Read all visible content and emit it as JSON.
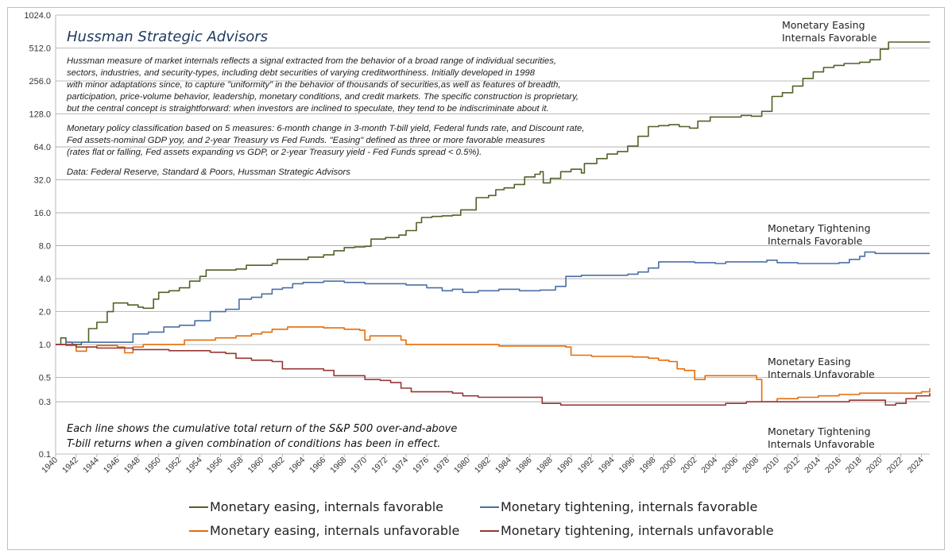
{
  "chart_data": {
    "type": "line",
    "y_scale": "log2",
    "ylim": [
      0.1,
      1024
    ],
    "y_ticks": [
      "1024.0",
      "512.0",
      "256.0",
      "128.0",
      "64.0",
      "32.0",
      "16.0",
      "8.0",
      "4.0",
      "2.0",
      "1.0",
      "0.5",
      "0.3",
      "0.1"
    ],
    "x_ticks": [
      "1940",
      "1942",
      "1944",
      "1946",
      "1948",
      "1950",
      "1952",
      "1954",
      "1956",
      "1958",
      "1960",
      "1962",
      "1964",
      "1966",
      "1968",
      "1970",
      "1972",
      "1974",
      "1976",
      "1978",
      "1980",
      "1982",
      "1984",
      "1986",
      "1988",
      "1990",
      "1992",
      "1994",
      "1996",
      "1998",
      "2000",
      "2002",
      "2004",
      "2006",
      "2008",
      "2010",
      "2012",
      "2014",
      "2016",
      "2018",
      "2020",
      "2022",
      "2024"
    ],
    "xlim": [
      1940,
      2024.8
    ],
    "grid": true,
    "legend_position": "bottom",
    "firm": "Hussman Strategic Advisors",
    "notes": [
      "Hussman measure of market internals reflects a signal extracted from the behavior of a broad range of individual securities,",
      "sectors, industries, and security-types, including debt securities of varying creditworthiness. Initially developed in 1998",
      "with minor adaptations since, to capture \"uniformity\" in the behavior of thousands of securities,as well as features of breadth,",
      "participation, price-volume behavior, leadership, monetary conditions, and credit markets. The specific construction is proprietary,",
      "but the central concept is straightforward: when investors are inclined to speculate, they tend to be indiscriminate about it.",
      "",
      "Monetary policy classification based on 5 measures: 6-month change in 3-month T-bill yield, Federal funds rate, and Discount rate,",
      "Fed assets-nominal GDP yoy, and 2-year Treasury vs Fed Funds. \"Easing\" defined as three or more favorable measures",
      "(rates flat or falling, Fed assets expanding vs GDP, or 2-year Treasury yield - Fed Funds spread < 0.5%).",
      "",
      "Data: Federal Reserve, Standard & Poors, Hussman Strategic Advisors"
    ],
    "bottom_note": [
      "Each line shows the cumulative total return of the S&P 500 over-and-above",
      "T-bill returns when a given combination of conditions has been in effect."
    ],
    "series": [
      {
        "name": "Monetary easing, internals favorable",
        "end_label": [
          "Monetary Easing",
          "Internals Favorable"
        ],
        "color": "#4f6228",
        "points": [
          [
            1940,
            1.0
          ],
          [
            1940.5,
            1.15
          ],
          [
            1941,
            1.05
          ],
          [
            1941.6,
            1.0
          ],
          [
            1942.5,
            1.05
          ],
          [
            1943.2,
            1.4
          ],
          [
            1944,
            1.6
          ],
          [
            1945,
            2.0
          ],
          [
            1945.6,
            2.4
          ],
          [
            1947,
            2.3
          ],
          [
            1948,
            2.2
          ],
          [
            1948.5,
            2.15
          ],
          [
            1949.5,
            2.6
          ],
          [
            1950,
            3.0
          ],
          [
            1951,
            3.1
          ],
          [
            1952,
            3.3
          ],
          [
            1953,
            3.8
          ],
          [
            1954,
            4.2
          ],
          [
            1954.6,
            4.8
          ],
          [
            1956,
            4.8
          ],
          [
            1957.5,
            4.9
          ],
          [
            1958.5,
            5.3
          ],
          [
            1960,
            5.3
          ],
          [
            1961,
            5.5
          ],
          [
            1961.5,
            6.0
          ],
          [
            1963,
            6.0
          ],
          [
            1964.5,
            6.3
          ],
          [
            1966,
            6.6
          ],
          [
            1967,
            7.2
          ],
          [
            1968,
            7.7
          ],
          [
            1969,
            7.8
          ],
          [
            1970,
            7.9
          ],
          [
            1970.6,
            9.2
          ],
          [
            1972,
            9.5
          ],
          [
            1973.3,
            10.0
          ],
          [
            1974,
            11.0
          ],
          [
            1975,
            13.0
          ],
          [
            1975.5,
            14.5
          ],
          [
            1976.5,
            14.8
          ],
          [
            1977.5,
            15.0
          ],
          [
            1978.5,
            15.2
          ],
          [
            1979.3,
            17.0
          ],
          [
            1980.5,
            17.0
          ],
          [
            1980.8,
            22.0
          ],
          [
            1982,
            23.0
          ],
          [
            1982.7,
            26.0
          ],
          [
            1983.5,
            27.0
          ],
          [
            1984.5,
            29.0
          ],
          [
            1985.5,
            34.0
          ],
          [
            1986.5,
            36.0
          ],
          [
            1987,
            38.0
          ],
          [
            1987.3,
            30.0
          ],
          [
            1988,
            33.0
          ],
          [
            1989,
            38.0
          ],
          [
            1990,
            40.0
          ],
          [
            1991,
            37.0
          ],
          [
            1991.3,
            45.0
          ],
          [
            1992.5,
            50.0
          ],
          [
            1993.5,
            55.0
          ],
          [
            1994.5,
            58.0
          ],
          [
            1995.5,
            65.0
          ],
          [
            1996.5,
            80.0
          ],
          [
            1997.5,
            98.0
          ],
          [
            1998.5,
            100.0
          ],
          [
            1999.5,
            102.0
          ],
          [
            2000.5,
            98.0
          ],
          [
            2001.5,
            95.0
          ],
          [
            2002.3,
            110.0
          ],
          [
            2003.5,
            120.0
          ],
          [
            2005,
            120.0
          ],
          [
            2006.5,
            124.0
          ],
          [
            2007.5,
            122.0
          ],
          [
            2008.5,
            135.0
          ],
          [
            2009.5,
            185.0
          ],
          [
            2010.5,
            200.0
          ],
          [
            2011.5,
            230.0
          ],
          [
            2012.5,
            270.0
          ],
          [
            2013.5,
            310.0
          ],
          [
            2014.5,
            340.0
          ],
          [
            2015.5,
            355.0
          ],
          [
            2016.5,
            370.0
          ],
          [
            2018,
            380.0
          ],
          [
            2019,
            400.0
          ],
          [
            2020,
            500.0
          ],
          [
            2020.8,
            580.0
          ],
          [
            2022,
            580.0
          ],
          [
            2024.8,
            578.0
          ]
        ]
      },
      {
        "name": "Monetary tightening, internals favorable",
        "end_label": [
          "Monetary Tightening",
          "Internals Favorable"
        ],
        "color": "#4a6fa5",
        "points": [
          [
            1940,
            1.0
          ],
          [
            1941,
            1.05
          ],
          [
            1943,
            1.05
          ],
          [
            1945,
            1.05
          ],
          [
            1946.5,
            1.05
          ],
          [
            1947.5,
            1.25
          ],
          [
            1949,
            1.3
          ],
          [
            1950,
            1.3
          ],
          [
            1950.5,
            1.45
          ],
          [
            1952,
            1.5
          ],
          [
            1953.5,
            1.65
          ],
          [
            1955,
            2.0
          ],
          [
            1956.5,
            2.1
          ],
          [
            1957.8,
            2.6
          ],
          [
            1959,
            2.7
          ],
          [
            1960,
            2.9
          ],
          [
            1961,
            3.2
          ],
          [
            1962,
            3.3
          ],
          [
            1963,
            3.6
          ],
          [
            1964,
            3.7
          ],
          [
            1966,
            3.8
          ],
          [
            1968,
            3.7
          ],
          [
            1970,
            3.6
          ],
          [
            1972,
            3.6
          ],
          [
            1974,
            3.5
          ],
          [
            1976,
            3.3
          ],
          [
            1977.5,
            3.1
          ],
          [
            1978.5,
            3.2
          ],
          [
            1979.5,
            3.0
          ],
          [
            1981,
            3.1
          ],
          [
            1983,
            3.2
          ],
          [
            1985,
            3.1
          ],
          [
            1987,
            3.15
          ],
          [
            1988.5,
            3.4
          ],
          [
            1989.5,
            4.2
          ],
          [
            1991,
            4.3
          ],
          [
            1993,
            4.3
          ],
          [
            1995.5,
            4.4
          ],
          [
            1996.5,
            4.6
          ],
          [
            1997.5,
            5.0
          ],
          [
            1998.5,
            5.7
          ],
          [
            2000,
            5.7
          ],
          [
            2002,
            5.6
          ],
          [
            2004,
            5.5
          ],
          [
            2005,
            5.7
          ],
          [
            2007,
            5.7
          ],
          [
            2009,
            5.9
          ],
          [
            2010,
            5.6
          ],
          [
            2012,
            5.5
          ],
          [
            2014,
            5.5
          ],
          [
            2016,
            5.6
          ],
          [
            2017,
            6.0
          ],
          [
            2018,
            6.4
          ],
          [
            2018.5,
            7.0
          ],
          [
            2019.5,
            6.8
          ],
          [
            2021,
            6.8
          ],
          [
            2024.8,
            6.8
          ]
        ]
      },
      {
        "name": "Monetary easing, internals unfavorable",
        "end_label": [
          "Monetary Easing",
          "Internals Unfavorable"
        ],
        "color": "#e46c0a",
        "points": [
          [
            1940,
            1.0
          ],
          [
            1941,
            0.98
          ],
          [
            1942,
            0.87
          ],
          [
            1943,
            0.95
          ],
          [
            1944,
            0.98
          ],
          [
            1946,
            0.95
          ],
          [
            1946.7,
            0.84
          ],
          [
            1947.5,
            0.95
          ],
          [
            1948.5,
            1.0
          ],
          [
            1950,
            1.0
          ],
          [
            1951.5,
            1.0
          ],
          [
            1952.5,
            1.1
          ],
          [
            1954,
            1.1
          ],
          [
            1955.5,
            1.15
          ],
          [
            1956.5,
            1.15
          ],
          [
            1957.5,
            1.2
          ],
          [
            1959,
            1.25
          ],
          [
            1960,
            1.3
          ],
          [
            1961,
            1.38
          ],
          [
            1962.5,
            1.45
          ],
          [
            1964,
            1.45
          ],
          [
            1966,
            1.42
          ],
          [
            1968,
            1.38
          ],
          [
            1969.5,
            1.35
          ],
          [
            1970,
            1.1
          ],
          [
            1970.5,
            1.2
          ],
          [
            1972,
            1.2
          ],
          [
            1973.5,
            1.1
          ],
          [
            1974,
            1.0
          ],
          [
            1975,
            1.0
          ],
          [
            1977,
            1.0
          ],
          [
            1979,
            1.0
          ],
          [
            1981,
            1.0
          ],
          [
            1983,
            0.97
          ],
          [
            1986,
            0.97
          ],
          [
            1988,
            0.97
          ],
          [
            1989.5,
            0.95
          ],
          [
            1990,
            0.8
          ],
          [
            1992,
            0.78
          ],
          [
            1994,
            0.78
          ],
          [
            1996,
            0.77
          ],
          [
            1997.5,
            0.75
          ],
          [
            1998.5,
            0.72
          ],
          [
            1999.5,
            0.7
          ],
          [
            2000.3,
            0.6
          ],
          [
            2001,
            0.58
          ],
          [
            2002,
            0.48
          ],
          [
            2003,
            0.52
          ],
          [
            2005,
            0.52
          ],
          [
            2007,
            0.52
          ],
          [
            2008,
            0.48
          ],
          [
            2008.5,
            0.3
          ],
          [
            2010,
            0.32
          ],
          [
            2012,
            0.33
          ],
          [
            2014,
            0.34
          ],
          [
            2016,
            0.35
          ],
          [
            2018,
            0.36
          ],
          [
            2020,
            0.36
          ],
          [
            2022,
            0.36
          ],
          [
            2024,
            0.37
          ],
          [
            2024.8,
            0.4
          ]
        ]
      },
      {
        "name": "Monetary tightening, internals unfavorable",
        "end_label": [
          "Monetary Tightening",
          "Internals Unfavorable"
        ],
        "color": "#953735",
        "points": [
          [
            1940,
            1.0
          ],
          [
            1942,
            0.95
          ],
          [
            1944,
            0.93
          ],
          [
            1946,
            0.93
          ],
          [
            1947.5,
            0.9
          ],
          [
            1949,
            0.9
          ],
          [
            1951,
            0.88
          ],
          [
            1953,
            0.88
          ],
          [
            1955,
            0.85
          ],
          [
            1956.5,
            0.83
          ],
          [
            1957.5,
            0.75
          ],
          [
            1959,
            0.72
          ],
          [
            1961,
            0.7
          ],
          [
            1962,
            0.6
          ],
          [
            1964,
            0.6
          ],
          [
            1966,
            0.58
          ],
          [
            1967,
            0.52
          ],
          [
            1968.5,
            0.52
          ],
          [
            1970,
            0.48
          ],
          [
            1971.5,
            0.47
          ],
          [
            1972.5,
            0.45
          ],
          [
            1973.5,
            0.4
          ],
          [
            1974.5,
            0.37
          ],
          [
            1975,
            0.37
          ],
          [
            1977,
            0.37
          ],
          [
            1978.5,
            0.36
          ],
          [
            1979.5,
            0.34
          ],
          [
            1981,
            0.33
          ],
          [
            1983,
            0.33
          ],
          [
            1985,
            0.33
          ],
          [
            1987,
            0.33
          ],
          [
            1987.2,
            0.29
          ],
          [
            1989,
            0.28
          ],
          [
            1991,
            0.28
          ],
          [
            1993,
            0.28
          ],
          [
            1995,
            0.28
          ],
          [
            1997,
            0.28
          ],
          [
            1999,
            0.28
          ],
          [
            2001,
            0.28
          ],
          [
            2003,
            0.28
          ],
          [
            2005,
            0.29
          ],
          [
            2007,
            0.3
          ],
          [
            2009,
            0.3
          ],
          [
            2011,
            0.3
          ],
          [
            2013,
            0.3
          ],
          [
            2015,
            0.3
          ],
          [
            2017,
            0.31
          ],
          [
            2019,
            0.31
          ],
          [
            2020.5,
            0.28
          ],
          [
            2021.5,
            0.29
          ],
          [
            2022.5,
            0.32
          ],
          [
            2023.5,
            0.34
          ],
          [
            2024.8,
            0.36
          ]
        ]
      }
    ]
  }
}
